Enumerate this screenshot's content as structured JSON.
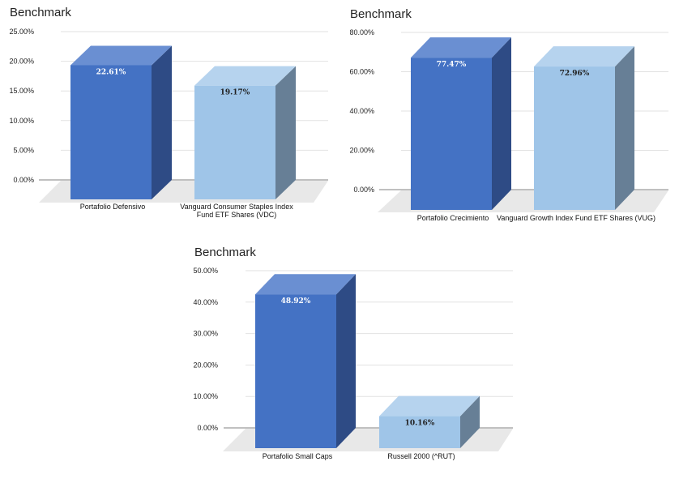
{
  "colors": {
    "primary_front": "#4472c4",
    "primary_side": "#2e4b85",
    "primary_top": "#6a8fd2",
    "secondary_front": "#9fc5e8",
    "secondary_side": "#677f96",
    "secondary_top": "#b6d3ee",
    "floor": "#e8e8e8",
    "grid": "#e2e2e2",
    "axis": "#9a9a9a",
    "label_light": "#ffffff",
    "label_dark": "#222222"
  },
  "chart_data": [
    {
      "type": "bar",
      "title": "Benchmark",
      "xlabel": "",
      "ylabel": "",
      "categories": [
        [
          "Portafolio Defensivo"
        ],
        [
          "Vanguard Consumer Staples Index",
          "Fund ETF Shares (VDC)"
        ]
      ],
      "values": [
        22.61,
        19.17
      ],
      "value_labels": [
        "22.61%",
        "19.17%"
      ],
      "ylim": [
        0,
        25
      ],
      "yticks": [
        "0.00%",
        "5.00%",
        "10.00%",
        "15.00%",
        "20.00%",
        "25.00%"
      ],
      "grid": true,
      "legend": "none"
    },
    {
      "type": "bar",
      "title": "Benchmark",
      "xlabel": "",
      "ylabel": "",
      "categories": [
        [
          "Portafolio Crecimiento"
        ],
        [
          "Vanguard Growth Index Fund ETF Shares (VUG)"
        ]
      ],
      "values": [
        77.47,
        72.96
      ],
      "value_labels": [
        "77.47%",
        "72.96%"
      ],
      "ylim": [
        0,
        80
      ],
      "yticks": [
        "0.00%",
        "20.00%",
        "40.00%",
        "60.00%",
        "80.00%"
      ],
      "grid": true,
      "legend": "none"
    },
    {
      "type": "bar",
      "title": "Benchmark",
      "xlabel": "",
      "ylabel": "",
      "categories": [
        [
          "Portafolio Small Caps"
        ],
        [
          "Russell 2000 (^RUT)"
        ]
      ],
      "values": [
        48.92,
        10.16
      ],
      "value_labels": [
        "48.92%",
        "10.16%"
      ],
      "ylim": [
        0,
        50
      ],
      "yticks": [
        "0.00%",
        "10.00%",
        "20.00%",
        "30.00%",
        "40.00%",
        "50.00%"
      ],
      "grid": true,
      "legend": "none"
    }
  ]
}
